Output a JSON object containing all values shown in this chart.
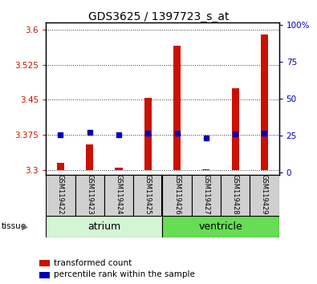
{
  "title": "GDS3625 / 1397723_s_at",
  "samples": [
    "GSM119422",
    "GSM119423",
    "GSM119424",
    "GSM119425",
    "GSM119426",
    "GSM119427",
    "GSM119428",
    "GSM119429"
  ],
  "red_values": [
    3.315,
    3.355,
    3.305,
    3.455,
    3.565,
    3.302,
    3.475,
    3.59
  ],
  "blue_values": [
    3.376,
    3.38,
    3.376,
    3.378,
    3.379,
    3.368,
    3.377,
    3.378
  ],
  "ylim_left": [
    3.29,
    3.615
  ],
  "ylim_right": [
    -1.6,
    101.6
  ],
  "yticks_left": [
    3.3,
    3.375,
    3.45,
    3.525,
    3.6
  ],
  "yticks_left_labels": [
    "3.3",
    "3.375",
    "3.45",
    "3.525",
    "3.6"
  ],
  "yticks_right": [
    0,
    25,
    50,
    75,
    100
  ],
  "yticks_right_labels": [
    "0",
    "25",
    "50",
    "75",
    "100%"
  ],
  "tissue_groups": [
    {
      "label": "atrium",
      "samples": [
        0,
        1,
        2,
        3
      ],
      "color": "#d4f5d4"
    },
    {
      "label": "ventricle",
      "samples": [
        4,
        5,
        6,
        7
      ],
      "color": "#66dd55"
    }
  ],
  "bar_bottom": 3.3,
  "bar_color": "#cc1100",
  "dot_color": "#0000bb",
  "grid_color": "#333333",
  "label_color_left": "#cc1100",
  "label_color_right": "#0000bb",
  "legend_red": "transformed count",
  "legend_blue": "percentile rank within the sample",
  "tissue_label": "tissue",
  "sample_box_color": "#d0d0d0",
  "bar_width": 0.25
}
